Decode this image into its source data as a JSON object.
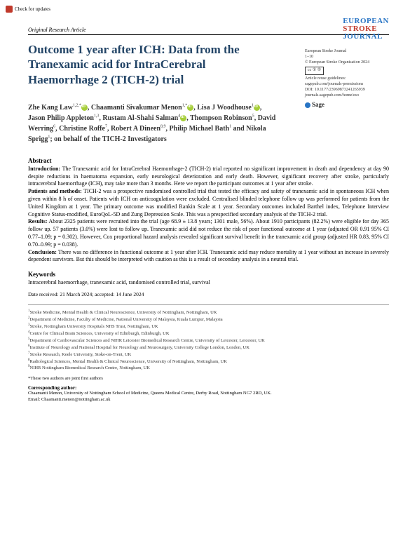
{
  "checkUpdates": "Check for updates",
  "articleType": "Original Research Article",
  "journalLogo": {
    "line1": "EUROPEAN",
    "line2": "STROKE",
    "line3": "JOURNAL"
  },
  "meta": {
    "journal": "European Stroke Journal",
    "pages": "1–10",
    "copyright": "© European Stroke Organisation 2024",
    "ccLabel": "cc ① ⑤",
    "reuse": "Article reuse guidelines:",
    "reuseUrl": "sagepub.com/journals-permissions",
    "doi": "DOI: 10.1177/23969873241265939",
    "journalUrl": "journals.sagepub.com/home/eso",
    "publisher": "Sage"
  },
  "title": "Outcome 1 year after ICH: Data from the Tranexamic acid for IntraCerebral Haemorrhage 2 (TICH-2) trial",
  "authors": {
    "a1": "Zhe Kang Law",
    "a1sup": "1,2,*",
    "a2": "Chaamanti Sivakumar Menon",
    "a2sup": "1,*",
    "a3": "Lisa J Woodhouse",
    "a3sup": "1",
    "a4": "Jason Philip Appleton",
    "a4sup": "1,3",
    "a5": "Rustam Al-Shahi Salman",
    "a5sup": "4",
    "a6": "Thompson Robinson",
    "a6sup": "5",
    "a7": "David Werring",
    "a7sup": "6",
    "a8": "Christine Roffe",
    "a8sup": "7",
    "a9": "Robert A Dineen",
    "a9sup": "8,9",
    "a10": "Philip Michael Bath",
    "a10sup": "1",
    "a11": "Nikola Sprigg",
    "a11sup": "1",
    "behalf": "; on behalf of the TICH-2 Investigators"
  },
  "abstract": {
    "heading": "Abstract",
    "intro_label": "Introduction:",
    "intro": " The Tranexamic acid for IntraCerebral Haemorrhage-2 (TICH-2) trial reported no significant improvement in death and dependency at day 90 despite reductions in haematoma expansion, early neurological deterioration and early death. However, significant recovery after stroke, particularly intracerebral haemorrhage (ICH), may take more than 3 months. Here we report the participant outcomes at 1 year after stroke.",
    "methods_label": "Patients and methods:",
    "methods": " TICH-2 was a prospective randomised controlled trial that tested the efficacy and safety of tranexamic acid in spontaneous ICH when given within 8 h of onset. Patients with ICH on anticoagulation were excluded. Centralised blinded telephone follow up was performed for patients from the United Kingdom at 1 year. The primary outcome was modified Rankin Scale at 1 year. Secondary outcomes included Barthel index, Telephone Interview Cognitive Status-modified, EuroQoL-5D and Zung Depression Scale. This was a prespecified secondary analysis of the TICH-2 trial.",
    "results_label": "Results:",
    "results": " About 2325 patients were recruited into the trial (age 68.9 ± 13.8 years; 1301 male, 56%). About 1910 participants (82.2%) were eligible for day 365 follow up. 57 patients (3.0%) were lost to follow up. Tranexamic acid did not reduce the risk of poor functional outcome at 1 year (adjusted OR 0.91 95% CI 0.77–1.09; p = 0.302). However, Cox proportional hazard analysis revealed significant survival benefit in the tranexamic acid group (adjusted HR 0.83, 95% CI 0.70–0.99; p = 0.038).",
    "conclusion_label": "Conclusion:",
    "conclusion": " There was no difference in functional outcome at 1 year after ICH. Tranexamic acid may reduce mortality at 1 year without an increase in severely dependent survivors. But this should be interpreted with caution as this is a result of secondary analysis in a neutral trial."
  },
  "keywords": {
    "heading": "Keywords",
    "text": "Intracerebral haemorrhage, tranexamic acid, randomised controlled trial, survival"
  },
  "dates": "Date received: 21 March 2024; accepted: 14 June 2024",
  "affiliations": {
    "a1": "Stroke Medicine, Mental Health & Clinical Neuroscience, University of Nottingham, Nottingham, UK",
    "a2": "Department of Medicine, Faculty of Medicine, National University of Malaysia, Kuala Lumpur, Malaysia",
    "a3": "Stroke, Nottingham University Hospitals NHS Trust, Nottingham, UK",
    "a4": "Centre for Clinical Brain Sciences, University of Edinburgh, Edinburgh, UK",
    "a5": "Department of Cardiovascular Sciences and NIHR Leicester Biomedical Research Centre, University of Leicester, Leicester, UK",
    "a6": "Institute of Neurology and National Hospital for Neurology and Neurosurgery, University College London, London, UK",
    "a7": "Stroke Research, Keele University, Stoke-on-Trent, UK",
    "a8": "Radiological Sciences, Mental Health & Clinical Neuroscience, University of Nottingham, Nottingham, UK",
    "a9": "NIHR Nottingham Biomedical Research Centre, Nottingham, UK"
  },
  "jointNote": "*These two authors are joint first authors",
  "corresponding": {
    "heading": "Corresponding author:",
    "text": "Chaamanti Menon, University of Nottingham School of Medicine, Queens Medical Centre, Derby Road, Nottingham NG7 2RD, UK.",
    "email": "Email: Chaamanti.menon@nottingham.ac.uk"
  },
  "colors": {
    "titleColor": "#224466",
    "blueAccent": "#2874c4",
    "redAccent": "#c0392b",
    "orcidGreen": "#a6ce39",
    "textColor": "#000000",
    "metaColor": "#333333"
  }
}
